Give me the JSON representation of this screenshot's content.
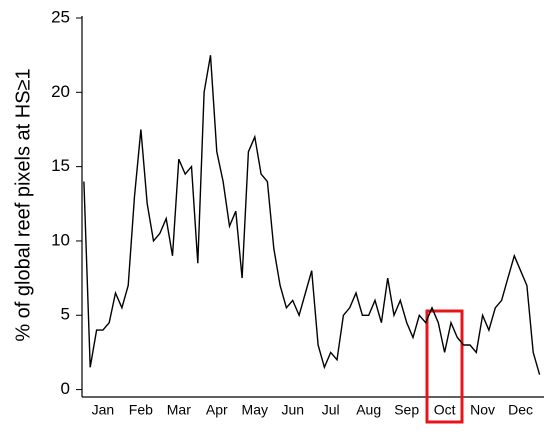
{
  "chart_data": {
    "type": "line",
    "y_label": "% of global reef pixels at HS≥1",
    "categories": [
      null,
      null,
      null,
      "Jan",
      null,
      null,
      null,
      null,
      null,
      "Feb",
      null,
      null,
      null,
      null,
      null,
      "Mar",
      null,
      null,
      null,
      null,
      null,
      "Apr",
      null,
      null,
      null,
      null,
      null,
      "May",
      null,
      null,
      null,
      null,
      null,
      "Jun",
      null,
      null,
      null,
      null,
      null,
      "Jul",
      null,
      null,
      null,
      null,
      null,
      "Aug",
      null,
      null,
      null,
      null,
      null,
      "Sep",
      null,
      null,
      null,
      null,
      null,
      "Oct",
      null,
      null,
      null,
      null,
      null,
      "Nov",
      null,
      null,
      null,
      null,
      null,
      "Dec",
      null,
      null,
      null
    ],
    "series": [
      {
        "color": "#000000",
        "values": [
          14,
          1.5,
          4,
          4,
          4.5,
          6.5,
          5.5,
          7,
          13,
          17.5,
          12.5,
          10,
          10.5,
          11.5,
          9,
          15.5,
          14.5,
          15,
          8.5,
          20,
          22.5,
          16,
          14,
          11,
          12,
          7.5,
          16,
          17,
          14.5,
          14,
          9.5,
          7,
          5.5,
          6,
          5,
          6.5,
          8,
          3,
          1.5,
          2.5,
          2,
          5,
          5.5,
          6.5,
          5,
          5,
          6,
          4.5,
          7.5,
          5,
          6,
          4.5,
          3.5,
          5,
          4.5,
          5.5,
          4.5,
          2.5,
          4.5,
          3.5,
          3,
          3,
          2.5,
          5,
          4,
          5.5,
          6,
          7.5,
          9,
          8,
          7,
          2.5,
          1
        ]
      }
    ],
    "ylim": [
      -0.5,
      25
    ],
    "yticks": [
      0,
      5,
      10,
      15,
      20,
      25
    ]
  }
}
